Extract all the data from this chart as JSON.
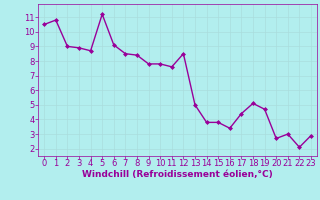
{
  "x": [
    0,
    1,
    2,
    3,
    4,
    5,
    6,
    7,
    8,
    9,
    10,
    11,
    12,
    13,
    14,
    15,
    16,
    17,
    18,
    19,
    20,
    21,
    22,
    23
  ],
  "y": [
    10.5,
    10.8,
    9.0,
    8.9,
    8.7,
    11.2,
    9.1,
    8.5,
    8.4,
    7.8,
    7.8,
    7.6,
    8.5,
    5.0,
    3.8,
    3.8,
    3.4,
    4.4,
    5.1,
    4.7,
    2.7,
    3.0,
    2.1,
    2.9
  ],
  "line_color": "#990099",
  "marker": "D",
  "marker_size": 2.0,
  "bg_color": "#b2eeee",
  "grid_color": "#aadddd",
  "xlabel": "Windchill (Refroidissement éolien,°C)",
  "xlim": [
    -0.5,
    23.5
  ],
  "ylim": [
    1.5,
    11.9
  ],
  "yticks": [
    2,
    3,
    4,
    5,
    6,
    7,
    8,
    9,
    10,
    11
  ],
  "xticks": [
    0,
    1,
    2,
    3,
    4,
    5,
    6,
    7,
    8,
    9,
    10,
    11,
    12,
    13,
    14,
    15,
    16,
    17,
    18,
    19,
    20,
    21,
    22,
    23
  ],
  "tick_color": "#990099",
  "label_color": "#990099",
  "axis_color": "#990099",
  "xlabel_fontsize": 6.5,
  "tick_fontsize": 6.0,
  "linewidth": 1.0
}
